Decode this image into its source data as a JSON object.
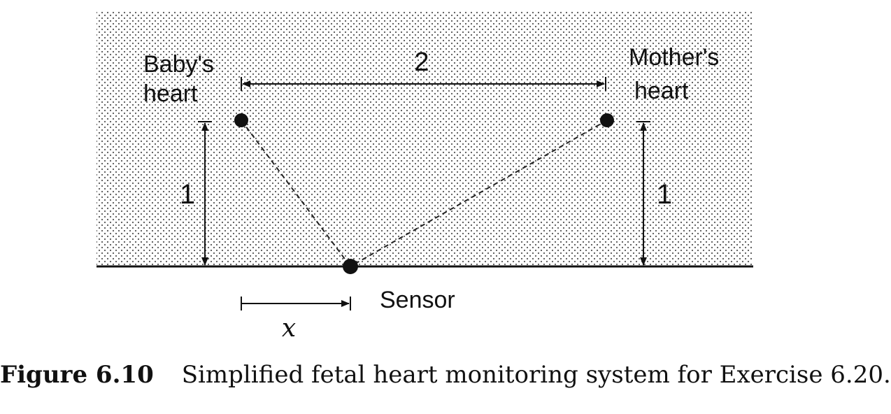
{
  "diagram": {
    "labels": {
      "baby_line1": "Baby's",
      "baby_line2": "heart",
      "mother_line1": "Mother's",
      "mother_line2": "heart",
      "separation": "2",
      "baby_height": "1",
      "mother_height": "1",
      "sensor": "Sensor",
      "offset": "x"
    }
  },
  "caption": {
    "label": "Figure 6.10",
    "text": "Simplified fetal heart monitoring system for Exercise 6.20."
  }
}
